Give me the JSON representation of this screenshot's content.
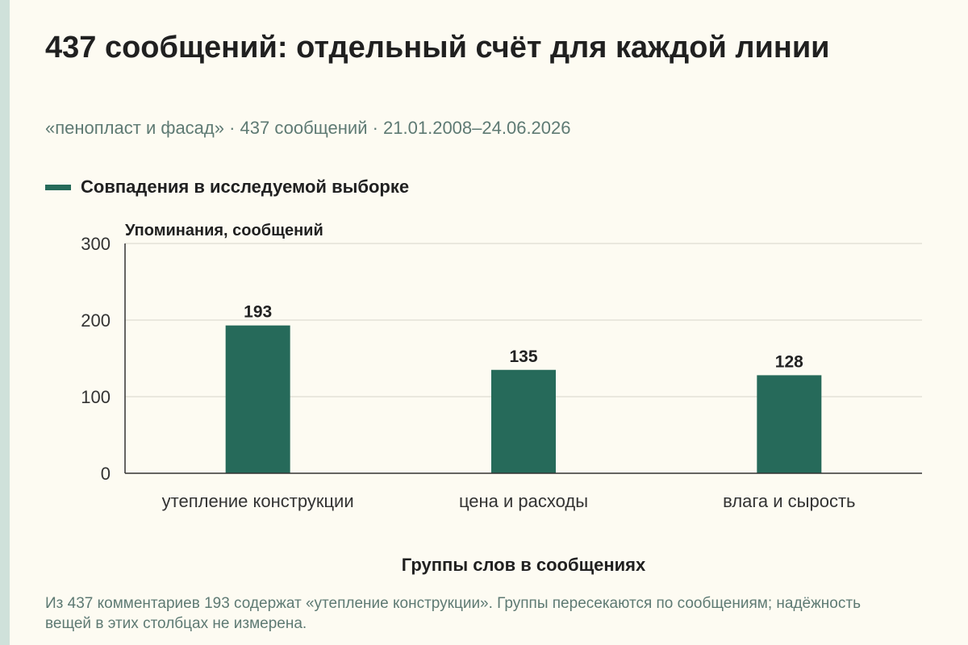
{
  "title": "437 сообщений: отдельный счёт для каждой линии",
  "subtitle": "«пенопласт и фасад» · 437 сообщений · 21.01.2008–24.06.2026",
  "note": "Из 437 комментариев 193 содержат «утепление конструкции». Группы пересекаются по сообщениям; надёжность вещей в этих столбцах не измерена.",
  "colors": {
    "bar": "#266a5a",
    "grid": "#d6d4cb",
    "axis": "#333333",
    "background": "#fdfbf2",
    "subtitle": "#5e7a73"
  },
  "chart_data": {
    "type": "bar",
    "title": "437 сообщений: отдельный счёт для каждой линии",
    "xlabel": "Группы слов в сообщениях",
    "ylabel": "Упоминания, сообщений",
    "categories": [
      "утепление конструкции",
      "цена и расходы",
      "влага и сырость"
    ],
    "series": [
      {
        "name": "Совпадения в исследуемой выборке",
        "values": [
          193,
          135,
          128
        ]
      }
    ],
    "ylim": [
      0,
      300
    ],
    "yticks": [
      0,
      100,
      200,
      300
    ],
    "grid": true,
    "legend": "top-left",
    "data_labels": true
  }
}
